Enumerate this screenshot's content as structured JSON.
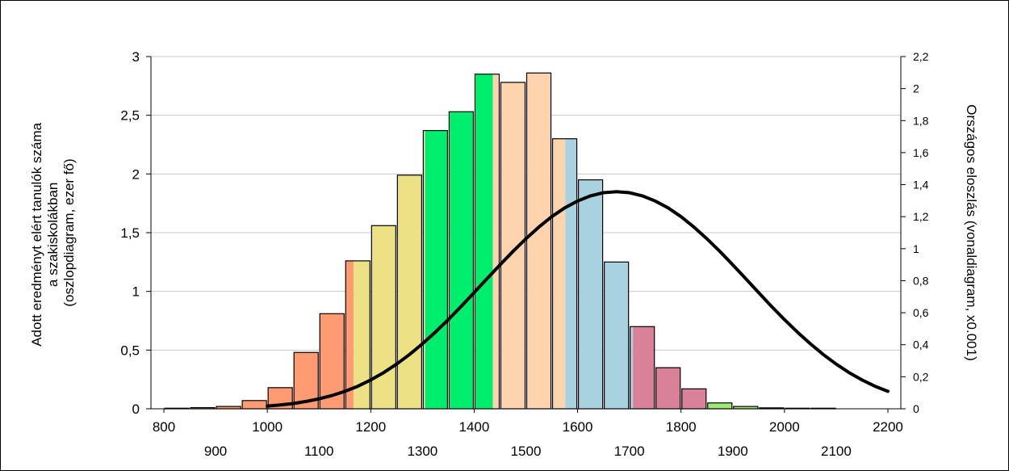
{
  "chart_data": {
    "type": "bar",
    "left_axis_label_lines": [
      "Adott eredményt elért tanulók száma",
      "a szakiskolákban",
      "(oszlopdiagram, ezer fő)"
    ],
    "right_axis_label": "Országos eloszlás (vonaldiagram, x0.001)",
    "y_left": {
      "min": 0,
      "max": 3,
      "ticks": [
        "0",
        "0,5",
        "1",
        "1,5",
        "2",
        "2,5",
        "3"
      ]
    },
    "y_right": {
      "min": 0,
      "max": 2.2,
      "ticks": [
        "0",
        "0,2",
        "0,4",
        "0,6",
        "0,8",
        "1",
        "1,2",
        "1,4",
        "1,6",
        "1,8",
        "2",
        "2,2"
      ]
    },
    "x_axis": {
      "min": 775,
      "max": 2225,
      "ticks_upper": [
        "800",
        "1000",
        "1200",
        "1400",
        "1600",
        "1800",
        "2000",
        "2200"
      ],
      "ticks_lower": [
        "900",
        "1100",
        "1300",
        "1500",
        "1700",
        "1900",
        "2100"
      ],
      "grid": "horizontal"
    },
    "bars": [
      {
        "x_start": 800,
        "x_end": 850,
        "value": 0.005,
        "colors": [
          "#FF9B73"
        ]
      },
      {
        "x_start": 850,
        "x_end": 900,
        "value": 0.01,
        "colors": [
          "#FF9B73"
        ]
      },
      {
        "x_start": 900,
        "x_end": 950,
        "value": 0.02,
        "colors": [
          "#FF9B73"
        ]
      },
      {
        "x_start": 950,
        "x_end": 1000,
        "value": 0.07,
        "colors": [
          "#FF9B73"
        ]
      },
      {
        "x_start": 1000,
        "x_end": 1050,
        "value": 0.18,
        "colors": [
          "#FF9B73"
        ]
      },
      {
        "x_start": 1050,
        "x_end": 1100,
        "value": 0.48,
        "colors": [
          "#FF9B73"
        ]
      },
      {
        "x_start": 1100,
        "x_end": 1150,
        "value": 0.81,
        "colors": [
          "#FF9B73"
        ]
      },
      {
        "x_start": 1150,
        "x_end": 1200,
        "value": 1.26,
        "colors": [
          "#FF9B73",
          "#EDE185"
        ],
        "split": 1167
      },
      {
        "x_start": 1200,
        "x_end": 1250,
        "value": 1.56,
        "colors": [
          "#EDE185"
        ]
      },
      {
        "x_start": 1250,
        "x_end": 1300,
        "value": 1.99,
        "colors": [
          "#EDE185"
        ]
      },
      {
        "x_start": 1300,
        "x_end": 1350,
        "value": 2.37,
        "colors": [
          "#EDE185",
          "#00EE6E"
        ],
        "split": 1305
      },
      {
        "x_start": 1350,
        "x_end": 1400,
        "value": 2.53,
        "colors": [
          "#00EE6E"
        ]
      },
      {
        "x_start": 1400,
        "x_end": 1450,
        "value": 2.85,
        "colors": [
          "#00EE6E",
          "#FDD4AE"
        ],
        "split": 1436
      },
      {
        "x_start": 1450,
        "x_end": 1500,
        "value": 2.78,
        "colors": [
          "#FDD4AE"
        ]
      },
      {
        "x_start": 1500,
        "x_end": 1550,
        "value": 2.86,
        "colors": [
          "#FDD4AE"
        ]
      },
      {
        "x_start": 1550,
        "x_end": 1600,
        "value": 2.3,
        "colors": [
          "#FDD4AE",
          "#A9D2E0"
        ],
        "split": 1576
      },
      {
        "x_start": 1600,
        "x_end": 1650,
        "value": 1.95,
        "colors": [
          "#A9D2E0"
        ]
      },
      {
        "x_start": 1650,
        "x_end": 1700,
        "value": 1.25,
        "colors": [
          "#A9D2E0"
        ]
      },
      {
        "x_start": 1700,
        "x_end": 1750,
        "value": 0.7,
        "colors": [
          "#A9D2E0",
          "#D98199"
        ],
        "split": 1707
      },
      {
        "x_start": 1750,
        "x_end": 1800,
        "value": 0.35,
        "colors": [
          "#D98199"
        ]
      },
      {
        "x_start": 1800,
        "x_end": 1850,
        "value": 0.17,
        "colors": [
          "#D98199"
        ]
      },
      {
        "x_start": 1850,
        "x_end": 1900,
        "value": 0.05,
        "colors": [
          "#9EE876"
        ]
      },
      {
        "x_start": 1900,
        "x_end": 1950,
        "value": 0.02,
        "colors": [
          "#9EE876"
        ]
      },
      {
        "x_start": 1950,
        "x_end": 2000,
        "value": 0.008,
        "colors": [
          "#9EE876"
        ]
      },
      {
        "x_start": 2000,
        "x_end": 2050,
        "value": 0.005,
        "colors": [
          "#9EE876"
        ]
      },
      {
        "x_start": 2050,
        "x_end": 2100,
        "value": 0.005,
        "colors": [
          "#9EE876"
        ]
      }
    ],
    "line": {
      "axis": "right",
      "color": "#000000",
      "x_start": 1000,
      "x_end": 2200,
      "x_step": 25,
      "y": [
        0.017,
        0.024,
        0.033,
        0.046,
        0.062,
        0.083,
        0.109,
        0.141,
        0.18,
        0.226,
        0.279,
        0.339,
        0.406,
        0.479,
        0.557,
        0.64,
        0.726,
        0.813,
        0.899,
        0.983,
        1.062,
        1.135,
        1.2,
        1.255,
        1.298,
        1.33,
        1.35,
        1.356,
        1.35,
        1.33,
        1.298,
        1.255,
        1.2,
        1.135,
        1.062,
        0.983,
        0.899,
        0.813,
        0.726,
        0.64,
        0.557,
        0.479,
        0.406,
        0.339,
        0.279,
        0.226,
        0.18,
        0.141,
        0.109
      ]
    }
  }
}
